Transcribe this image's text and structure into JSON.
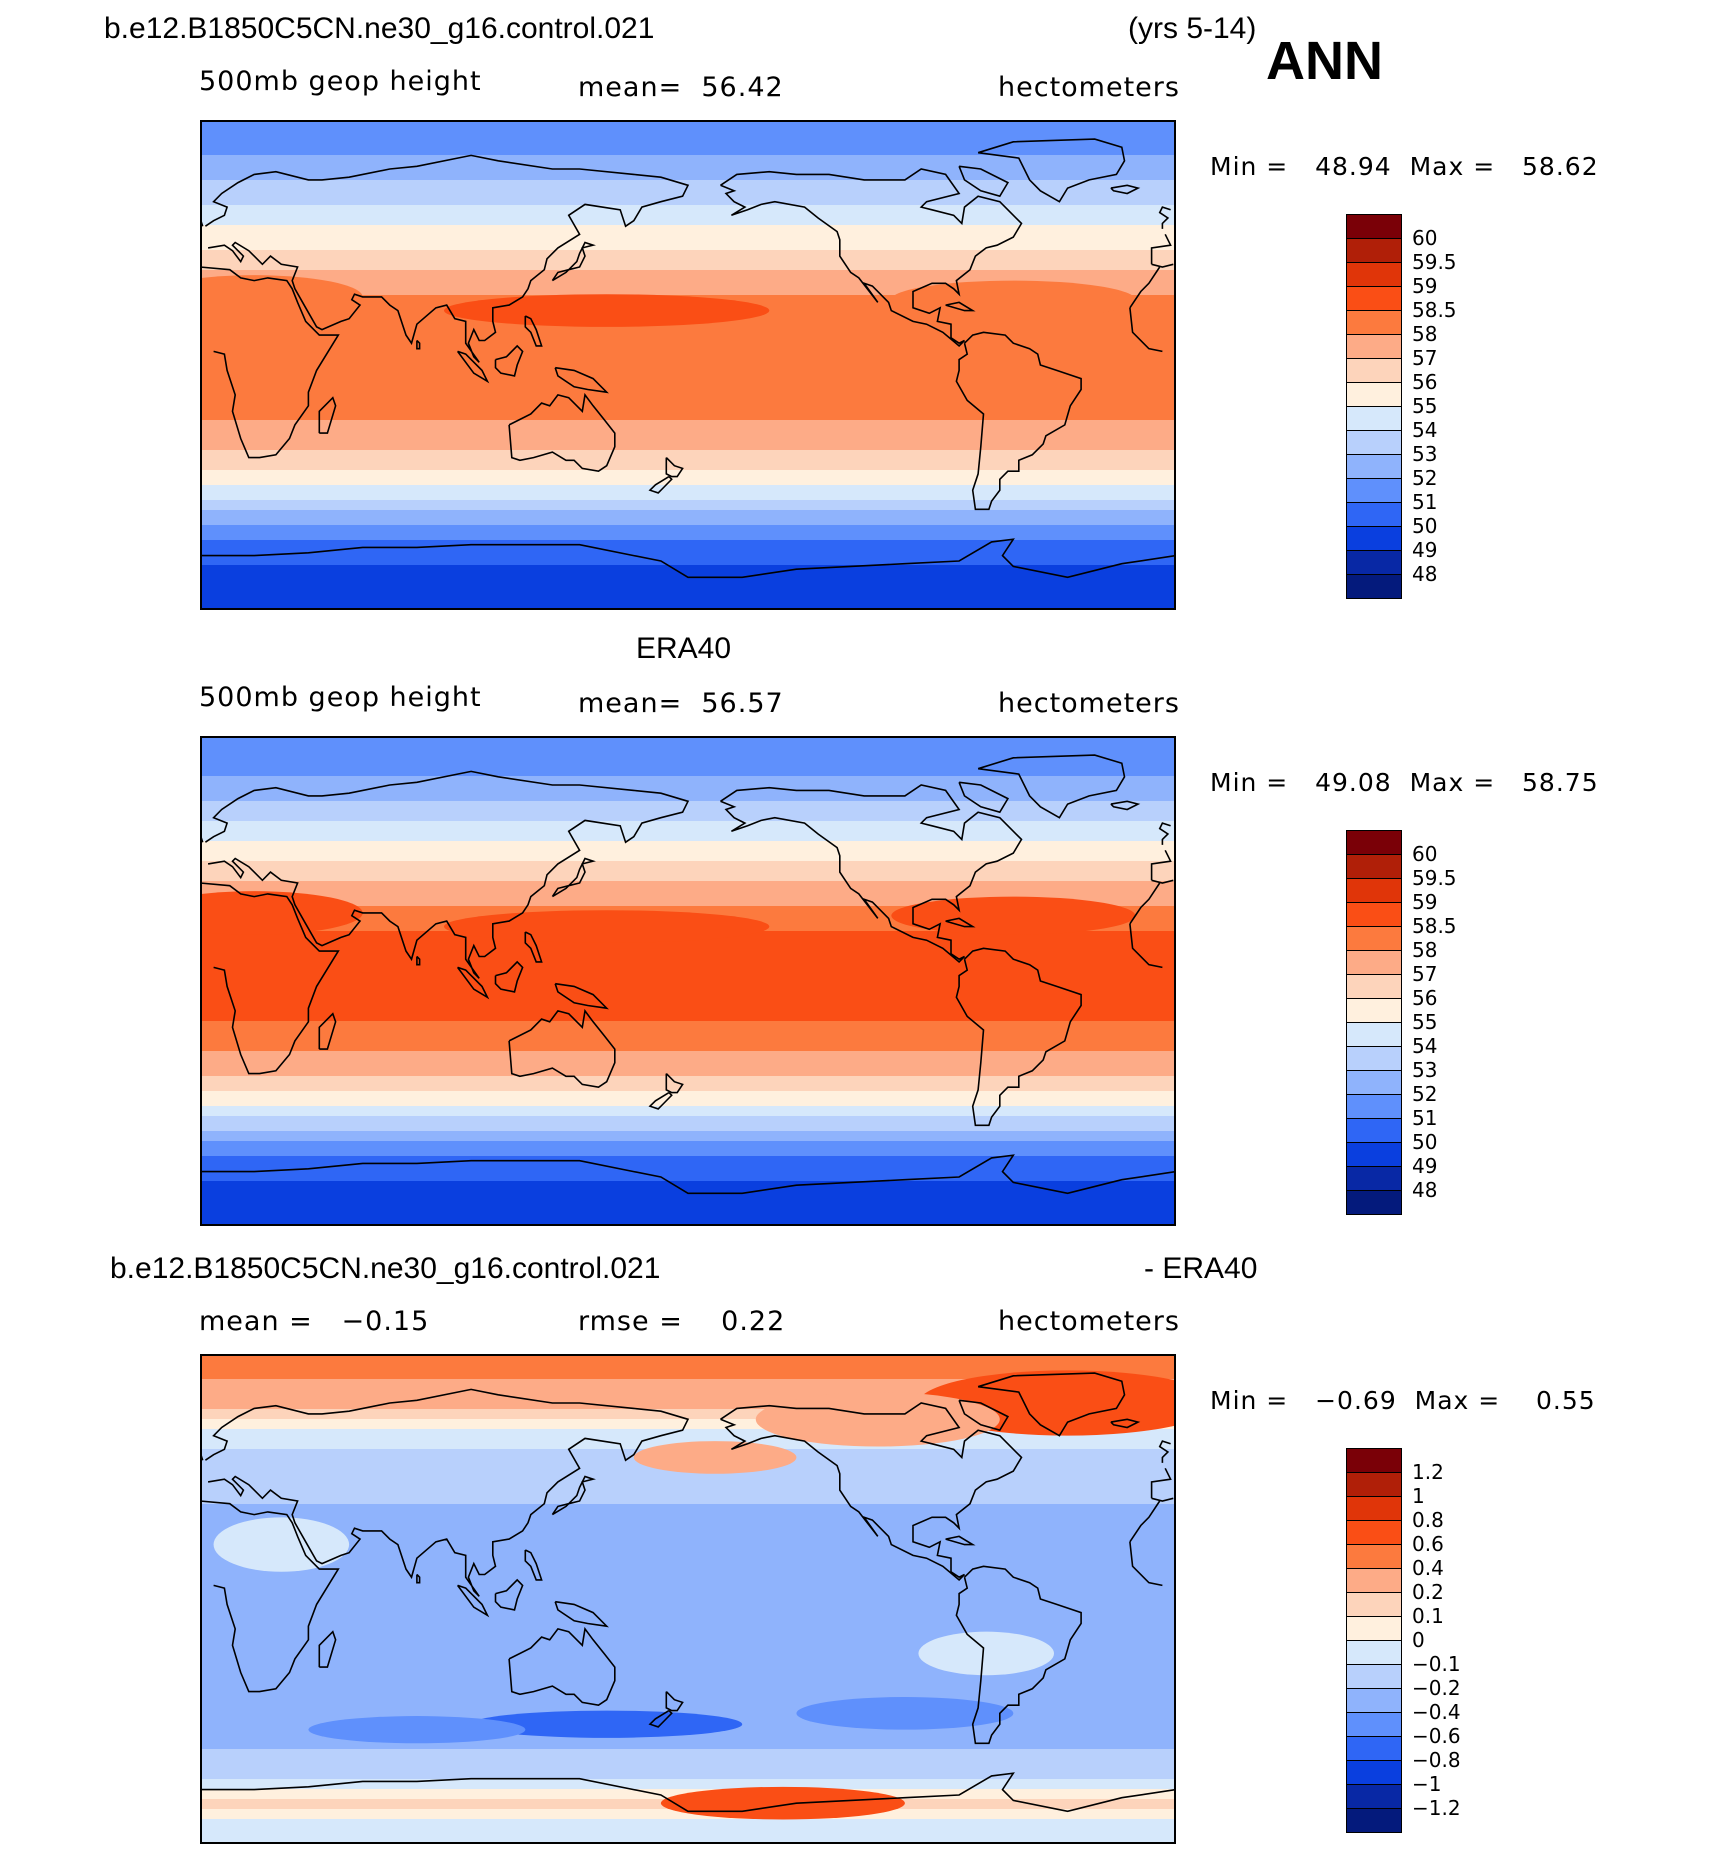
{
  "header": {
    "case_name": "b.e12.B1850C5CN.ne30_g16.control.021",
    "years": "(yrs 5-14)",
    "season": "ANN"
  },
  "panels": [
    {
      "id": "model",
      "title": "",
      "variable": "500mb geop height",
      "stat1_label": "mean=",
      "stat1_value": "56.42",
      "stat2_label": "",
      "stat2_value": "",
      "units": "hectometers",
      "min_label": "Min =",
      "min_value": "48.94",
      "max_label": "Max =",
      "max_value": "58.62"
    },
    {
      "id": "obs",
      "title": "ERA40",
      "variable": "500mb geop height",
      "stat1_label": "mean=",
      "stat1_value": "56.57",
      "stat2_label": "",
      "stat2_value": "",
      "units": "hectometers",
      "min_label": "Min =",
      "min_value": "49.08",
      "max_label": "Max =",
      "max_value": "58.75"
    },
    {
      "id": "diff",
      "title": "b.e12.B1850C5CN.ne30_g16.control.021",
      "title_right": "- ERA40",
      "variable": "",
      "stat1_label": "mean =",
      "stat1_value": "−0.15",
      "stat2_label": "rmse =",
      "stat2_value": "0.22",
      "units": "hectometers",
      "min_label": "Min =",
      "min_value": "−0.69",
      "max_label": "Max =",
      "max_value": "0.55"
    }
  ],
  "chart_data": [
    {
      "type": "heatmap",
      "title": "b.e12.B1850C5CN.ne30_g16.control.021 (yrs 5-14) ANN",
      "variable": "500mb geop height",
      "units": "hectometers",
      "mean": 56.42,
      "min": 48.94,
      "max": 58.62,
      "x_range": [
        0,
        360
      ],
      "y_range": [
        -90,
        90
      ],
      "colorbar_levels": [
        "60",
        "59.5",
        "59",
        "58.5",
        "58",
        "57",
        "56",
        "55",
        "54",
        "53",
        "52",
        "51",
        "50",
        "49",
        "48"
      ],
      "zonal_profile": {
        "lat": [
          85,
          75,
          65,
          55,
          45,
          35,
          25,
          15,
          5,
          -5,
          -15,
          -25,
          -35,
          -45,
          -55,
          -65,
          -75,
          -85
        ],
        "value": [
          51.5,
          52.2,
          53.3,
          54.5,
          55.7,
          57.0,
          58.0,
          58.4,
          58.3,
          58.3,
          58.2,
          57.8,
          56.5,
          54.8,
          52.7,
          50.8,
          49.9,
          49.6
        ]
      }
    },
    {
      "type": "heatmap",
      "title": "ERA40",
      "variable": "500mb geop height",
      "units": "hectometers",
      "mean": 56.57,
      "min": 49.08,
      "max": 58.75,
      "x_range": [
        0,
        360
      ],
      "y_range": [
        -90,
        90
      ],
      "colorbar_levels": [
        "60",
        "59.5",
        "59",
        "58.5",
        "58",
        "57",
        "56",
        "55",
        "54",
        "53",
        "52",
        "51",
        "50",
        "49",
        "48"
      ],
      "zonal_profile": {
        "lat": [
          85,
          75,
          65,
          55,
          45,
          35,
          25,
          15,
          5,
          -5,
          -15,
          -25,
          -35,
          -45,
          -55,
          -65,
          -75,
          -85
        ],
        "value": [
          51.3,
          52.0,
          53.1,
          54.5,
          55.8,
          57.2,
          58.3,
          58.6,
          58.6,
          58.6,
          58.5,
          58.1,
          56.9,
          55.0,
          52.9,
          50.8,
          49.9,
          49.8
        ]
      }
    },
    {
      "type": "heatmap",
      "title": "b.e12.B1850C5CN.ne30_g16.control.021 - ERA40",
      "units": "hectometers",
      "mean": -0.15,
      "rmse": 0.22,
      "min": -0.69,
      "max": 0.55,
      "x_range": [
        0,
        360
      ],
      "y_range": [
        -90,
        90
      ],
      "colorbar_levels": [
        "1.2",
        "1",
        "0.8",
        "0.6",
        "0.4",
        "0.2",
        "0.1",
        "0",
        "−0.1",
        "−0.2",
        "−0.4",
        "−0.6",
        "−0.8",
        "−1",
        "−1.2"
      ],
      "zonal_profile": {
        "lat": [
          85,
          75,
          65,
          55,
          45,
          35,
          25,
          15,
          5,
          -5,
          -15,
          -25,
          -35,
          -45,
          -55,
          -65,
          -75,
          -85
        ],
        "value": [
          0.45,
          0.35,
          0.05,
          -0.1,
          -0.2,
          -0.2,
          -0.25,
          -0.25,
          -0.2,
          -0.25,
          -0.25,
          -0.3,
          -0.35,
          -0.3,
          -0.2,
          -0.15,
          0.15,
          -0.1
        ]
      }
    }
  ],
  "colors": {
    "abs_palette": [
      "#7a0007",
      "#b01f08",
      "#e03509",
      "#fa4e15",
      "#fc7a3e",
      "#fdab87",
      "#fdd4bb",
      "#fff0de",
      "#d6e8fb",
      "#b8d0fc",
      "#8fb3fc",
      "#5f90fc",
      "#2f66f5",
      "#0a3fdf",
      "#0828a5",
      "#041a7c"
    ],
    "diff_palette": [
      "#7a0007",
      "#b01f08",
      "#e03509",
      "#fa4e15",
      "#fc7a3e",
      "#fdab87",
      "#fdd4bb",
      "#fff0de",
      "#d6e8fb",
      "#b8d0fc",
      "#8fb3fc",
      "#5f90fc",
      "#2f66f5",
      "#0a3fdf",
      "#0828a5",
      "#041a7c"
    ]
  }
}
